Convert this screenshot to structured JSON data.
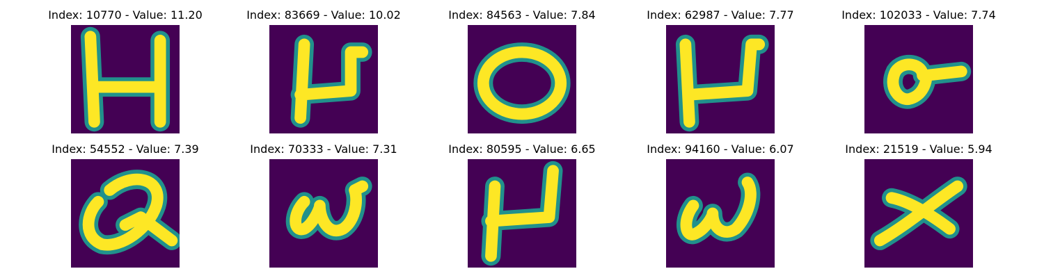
{
  "colors": {
    "background": "#440154",
    "stroke_core": "#fde725",
    "stroke_edge": "#21918c"
  },
  "panels": [
    {
      "title": "Index: 10770 - Value: 11.20",
      "icon": "letter-H-image"
    },
    {
      "title": "Index: 83669 - Value: 10.02",
      "icon": "letter-U-image"
    },
    {
      "title": "Index: 84563 - Value: 7.84",
      "icon": "letter-O-image"
    },
    {
      "title": "Index: 62987 - Value: 7.77",
      "icon": "letter-U-image"
    },
    {
      "title": "Index: 102033 - Value: 7.74",
      "icon": "letter-g-image"
    },
    {
      "title": "Index: 54552 - Value: 7.39",
      "icon": "letter-Q-image"
    },
    {
      "title": "Index: 70333 - Value: 7.31",
      "icon": "letter-w-image"
    },
    {
      "title": "Index: 80595 - Value: 6.65",
      "icon": "letter-U-image"
    },
    {
      "title": "Index: 94160 - Value: 6.07",
      "icon": "letter-w-image"
    },
    {
      "title": "Index: 21519 - Value: 5.94",
      "icon": "letter-x-image"
    }
  ]
}
